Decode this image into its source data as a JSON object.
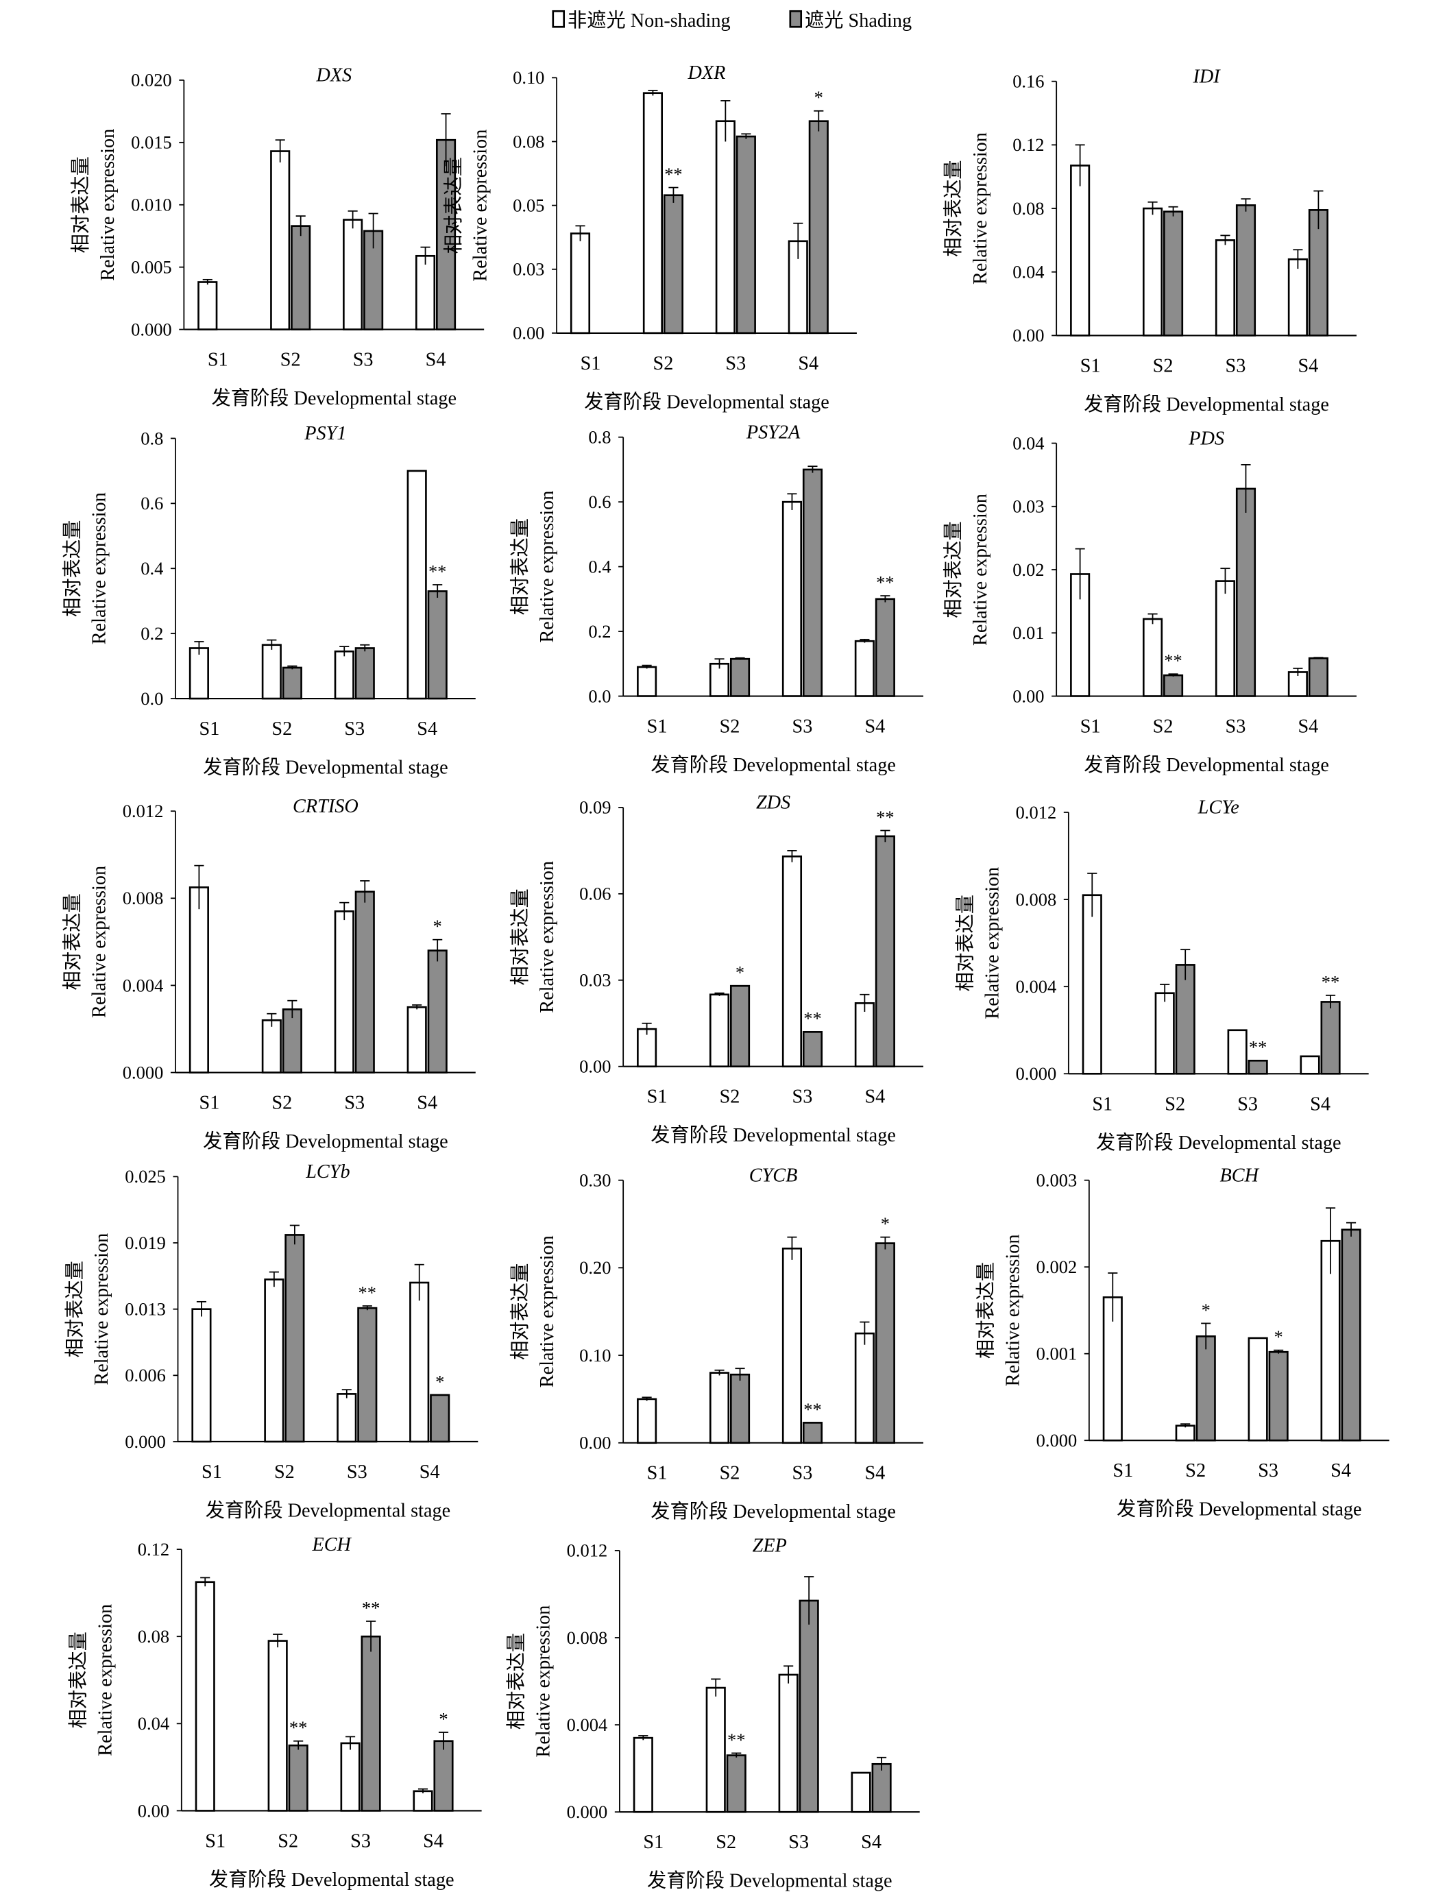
{
  "legend": {
    "non_shading": "非遮光 Non-shading",
    "shading": "遮光 Shading"
  },
  "colors": {
    "non_shading": "#ffffff",
    "shading": "#8c8c8c",
    "axis": "#000000"
  },
  "ylabel_cn": "相对表达量",
  "ylabel_en": "Relative expression",
  "xlabel": "发育阶段 Developmental stage",
  "chart_data": [
    {
      "type": "bar",
      "title": "DXS",
      "categories": [
        "S1",
        "S2",
        "S3",
        "S4"
      ],
      "ylim": [
        0,
        0.02
      ],
      "yticks": [
        0,
        0.005,
        0.01,
        0.015,
        0.02
      ],
      "ytick_labels": [
        "0.000",
        "0.005",
        "0.010",
        "0.015",
        "0.020"
      ],
      "series": [
        {
          "name": "Non-shading",
          "values": [
            0.0038,
            0.0143,
            0.0088,
            0.0059
          ],
          "errors": [
            0.0002,
            0.0009,
            0.0007,
            0.0007
          ]
        },
        {
          "name": "Shading",
          "values": [
            null,
            0.0083,
            0.0079,
            0.0152
          ],
          "errors": [
            null,
            0.0008,
            0.0014,
            0.0021
          ]
        }
      ],
      "significance": [
        "",
        "",
        "",
        ""
      ]
    },
    {
      "type": "bar",
      "title": "DXR",
      "categories": [
        "S1",
        "S2",
        "S3",
        "S4"
      ],
      "ylim": [
        0,
        0.1
      ],
      "yticks": [
        0,
        0.025,
        0.05,
        0.075,
        0.1
      ],
      "ytick_labels": [
        "0.00",
        "0.03",
        "0.05",
        "0.08",
        "0.10"
      ],
      "series": [
        {
          "name": "Non-shading",
          "values": [
            0.039,
            0.094,
            0.083,
            0.036
          ],
          "errors": [
            0.003,
            0.001,
            0.008,
            0.007
          ]
        },
        {
          "name": "Shading",
          "values": [
            null,
            0.054,
            0.077,
            0.083
          ],
          "errors": [
            null,
            0.003,
            0.001,
            0.004
          ]
        }
      ],
      "significance": [
        "",
        "**",
        "",
        "*"
      ]
    },
    {
      "type": "bar",
      "title": "IDI",
      "categories": [
        "S1",
        "S2",
        "S3",
        "S4"
      ],
      "ylim": [
        0,
        0.16
      ],
      "yticks": [
        0,
        0.04,
        0.08,
        0.12,
        0.16
      ],
      "ytick_labels": [
        "0.00",
        "0.04",
        "0.08",
        "0.12",
        "0.16"
      ],
      "series": [
        {
          "name": "Non-shading",
          "values": [
            0.107,
            0.08,
            0.06,
            0.048
          ],
          "errors": [
            0.013,
            0.004,
            0.003,
            0.006
          ]
        },
        {
          "name": "Shading",
          "values": [
            null,
            0.078,
            0.082,
            0.079
          ],
          "errors": [
            null,
            0.003,
            0.004,
            0.012
          ]
        }
      ],
      "significance": [
        "",
        "",
        "",
        ""
      ]
    },
    {
      "type": "bar",
      "title": "PSY1",
      "categories": [
        "S1",
        "S2",
        "S3",
        "S4"
      ],
      "ylim": [
        0,
        0.8
      ],
      "yticks": [
        0,
        0.2,
        0.4,
        0.6,
        0.8
      ],
      "ytick_labels": [
        "0.0",
        "0.2",
        "0.4",
        "0.6",
        "0.8"
      ],
      "series": [
        {
          "name": "Non-shading",
          "values": [
            0.155,
            0.165,
            0.145,
            0.7
          ],
          "errors": [
            0.02,
            0.015,
            0.015,
            0
          ]
        },
        {
          "name": "Shading",
          "values": [
            null,
            0.095,
            0.155,
            0.33
          ],
          "errors": [
            null,
            0.005,
            0.01,
            0.02
          ]
        }
      ],
      "significance": [
        "",
        "",
        "",
        "**"
      ]
    },
    {
      "type": "bar",
      "title": "PSY2A",
      "categories": [
        "S1",
        "S2",
        "S3",
        "S4"
      ],
      "ylim": [
        0,
        0.8
      ],
      "yticks": [
        0,
        0.2,
        0.4,
        0.6,
        0.8
      ],
      "ytick_labels": [
        "0.0",
        "0.2",
        "0.4",
        "0.6",
        "0.8"
      ],
      "series": [
        {
          "name": "Non-shading",
          "values": [
            0.09,
            0.1,
            0.6,
            0.17
          ],
          "errors": [
            0.005,
            0.015,
            0.025,
            0.005
          ]
        },
        {
          "name": "Shading",
          "values": [
            null,
            0.115,
            0.7,
            0.3
          ],
          "errors": [
            null,
            0.003,
            0.01,
            0.01
          ]
        }
      ],
      "significance": [
        "",
        "",
        "",
        "**"
      ]
    },
    {
      "type": "bar",
      "title": "PDS",
      "categories": [
        "S1",
        "S2",
        "S3",
        "S4"
      ],
      "ylim": [
        0,
        0.04
      ],
      "yticks": [
        0,
        0.01,
        0.02,
        0.03,
        0.04
      ],
      "ytick_labels": [
        "0.00",
        "0.01",
        "0.02",
        "0.03",
        "0.04"
      ],
      "series": [
        {
          "name": "Non-shading",
          "values": [
            0.0193,
            0.0122,
            0.0182,
            0.0038
          ],
          "errors": [
            0.004,
            0.0008,
            0.002,
            0.0006
          ]
        },
        {
          "name": "Shading",
          "values": [
            null,
            0.0033,
            0.0328,
            0.006
          ],
          "errors": [
            null,
            0.0002,
            0.0038,
            0.0001
          ]
        }
      ],
      "significance": [
        "",
        "**",
        "",
        ""
      ]
    },
    {
      "type": "bar",
      "title": "CRTISO",
      "categories": [
        "S1",
        "S2",
        "S3",
        "S4"
      ],
      "ylim": [
        0,
        0.012
      ],
      "yticks": [
        0,
        0.004,
        0.008,
        0.012
      ],
      "ytick_labels": [
        "0.000",
        "0.004",
        "0.008",
        "0.012"
      ],
      "series": [
        {
          "name": "Non-shading",
          "values": [
            0.0085,
            0.0024,
            0.0074,
            0.003
          ],
          "errors": [
            0.001,
            0.0003,
            0.0004,
            0.0001
          ]
        },
        {
          "name": "Shading",
          "values": [
            null,
            0.0029,
            0.0083,
            0.0056
          ],
          "errors": [
            null,
            0.0004,
            0.0005,
            0.0005
          ]
        }
      ],
      "significance": [
        "",
        "",
        "",
        "*"
      ]
    },
    {
      "type": "bar",
      "title": "ZDS",
      "categories": [
        "S1",
        "S2",
        "S3",
        "S4"
      ],
      "ylim": [
        0,
        0.09
      ],
      "yticks": [
        0,
        0.03,
        0.06,
        0.09
      ],
      "ytick_labels": [
        "0.00",
        "0.03",
        "0.06",
        "0.09"
      ],
      "series": [
        {
          "name": "Non-shading",
          "values": [
            0.013,
            0.025,
            0.073,
            0.022
          ],
          "errors": [
            0.002,
            0.0005,
            0.002,
            0.003
          ]
        },
        {
          "name": "Shading",
          "values": [
            null,
            0.028,
            0.012,
            0.08
          ],
          "errors": [
            null,
            0,
            0,
            0.002
          ]
        }
      ],
      "significance": [
        "",
        "*",
        "**",
        "**"
      ]
    },
    {
      "type": "bar",
      "title": "LCYe",
      "categories": [
        "S1",
        "S2",
        "S3",
        "S4"
      ],
      "ylim": [
        0,
        0.012
      ],
      "yticks": [
        0,
        0.004,
        0.008,
        0.012
      ],
      "ytick_labels": [
        "0.000",
        "0.004",
        "0.008",
        "0.012"
      ],
      "series": [
        {
          "name": "Non-shading",
          "values": [
            0.0082,
            0.0037,
            0.002,
            0.0008
          ],
          "errors": [
            0.001,
            0.0004,
            0,
            0
          ]
        },
        {
          "name": "Shading",
          "values": [
            null,
            0.005,
            0.0006,
            0.0033
          ],
          "errors": [
            null,
            0.0007,
            0,
            0.0003
          ]
        }
      ],
      "significance": [
        "",
        "",
        "**",
        "**"
      ]
    },
    {
      "type": "bar",
      "title": "LCYb",
      "categories": [
        "S1",
        "S2",
        "S3",
        "S4"
      ],
      "ylim": [
        0,
        0.025
      ],
      "yticks": [
        0,
        0.00625,
        0.0125,
        0.01875,
        0.025
      ],
      "ytick_labels": [
        "0.000",
        "0.006",
        "0.013",
        "0.019",
        "0.025"
      ],
      "series": [
        {
          "name": "Non-shading",
          "values": [
            0.0125,
            0.0153,
            0.0045,
            0.015
          ],
          "errors": [
            0.0007,
            0.0007,
            0.0004,
            0.0017
          ]
        },
        {
          "name": "Shading",
          "values": [
            null,
            0.0195,
            0.0126,
            0.0044
          ],
          "errors": [
            null,
            0.0009,
            0.0002,
            0
          ]
        }
      ],
      "significance": [
        "",
        "",
        "**",
        "*"
      ]
    },
    {
      "type": "bar",
      "title": "CYCB",
      "categories": [
        "S1",
        "S2",
        "S3",
        "S4"
      ],
      "ylim": [
        0,
        0.3
      ],
      "yticks": [
        0,
        0.1,
        0.2,
        0.3
      ],
      "ytick_labels": [
        "0.00",
        "0.10",
        "0.20",
        "0.30"
      ],
      "series": [
        {
          "name": "Non-shading",
          "values": [
            0.05,
            0.08,
            0.222,
            0.125
          ],
          "errors": [
            0.002,
            0.003,
            0.013,
            0.013
          ]
        },
        {
          "name": "Shading",
          "values": [
            null,
            0.078,
            0.023,
            0.228
          ],
          "errors": [
            null,
            0.007,
            0,
            0.007
          ]
        }
      ],
      "significance": [
        "",
        "",
        "**",
        "*"
      ]
    },
    {
      "type": "bar",
      "title": "BCH",
      "categories": [
        "S1",
        "S2",
        "S3",
        "S4"
      ],
      "ylim": [
        0,
        0.003
      ],
      "yticks": [
        0,
        0.001,
        0.002,
        0.003
      ],
      "ytick_labels": [
        "0.000",
        "0.001",
        "0.002",
        "0.003"
      ],
      "series": [
        {
          "name": "Non-shading",
          "values": [
            0.00165,
            0.00017,
            0.00118,
            0.0023
          ],
          "errors": [
            0.00028,
            2e-05,
            0,
            0.00038
          ]
        },
        {
          "name": "Shading",
          "values": [
            null,
            0.0012,
            0.00102,
            0.00243
          ],
          "errors": [
            null,
            0.00015,
            2e-05,
            8e-05
          ]
        }
      ],
      "significance": [
        "",
        "*",
        "*",
        ""
      ]
    },
    {
      "type": "bar",
      "title": "ECH",
      "categories": [
        "S1",
        "S2",
        "S3",
        "S4"
      ],
      "ylim": [
        0,
        0.12
      ],
      "yticks": [
        0,
        0.04,
        0.08,
        0.12
      ],
      "ytick_labels": [
        "0.00",
        "0.04",
        "0.08",
        "0.12"
      ],
      "series": [
        {
          "name": "Non-shading",
          "values": [
            0.105,
            0.078,
            0.031,
            0.009
          ],
          "errors": [
            0.002,
            0.003,
            0.003,
            0.001
          ]
        },
        {
          "name": "Shading",
          "values": [
            null,
            0.03,
            0.08,
            0.032
          ],
          "errors": [
            null,
            0.002,
            0.007,
            0.004
          ]
        }
      ],
      "significance": [
        "",
        "**",
        "**",
        "*"
      ]
    },
    {
      "type": "bar",
      "title": "ZEP",
      "categories": [
        "S1",
        "S2",
        "S3",
        "S4"
      ],
      "ylim": [
        0,
        0.012
      ],
      "yticks": [
        0,
        0.004,
        0.008,
        0.012
      ],
      "ytick_labels": [
        "0.000",
        "0.004",
        "0.008",
        "0.012"
      ],
      "series": [
        {
          "name": "Non-shading",
          "values": [
            0.0034,
            0.0057,
            0.0063,
            0.0018
          ],
          "errors": [
            0.0001,
            0.0004,
            0.0004,
            0
          ]
        },
        {
          "name": "Shading",
          "values": [
            null,
            0.0026,
            0.0097,
            0.0022
          ],
          "errors": [
            null,
            0.0001,
            0.0011,
            0.0003
          ]
        }
      ],
      "significance": [
        "",
        "**",
        "",
        ""
      ]
    }
  ]
}
